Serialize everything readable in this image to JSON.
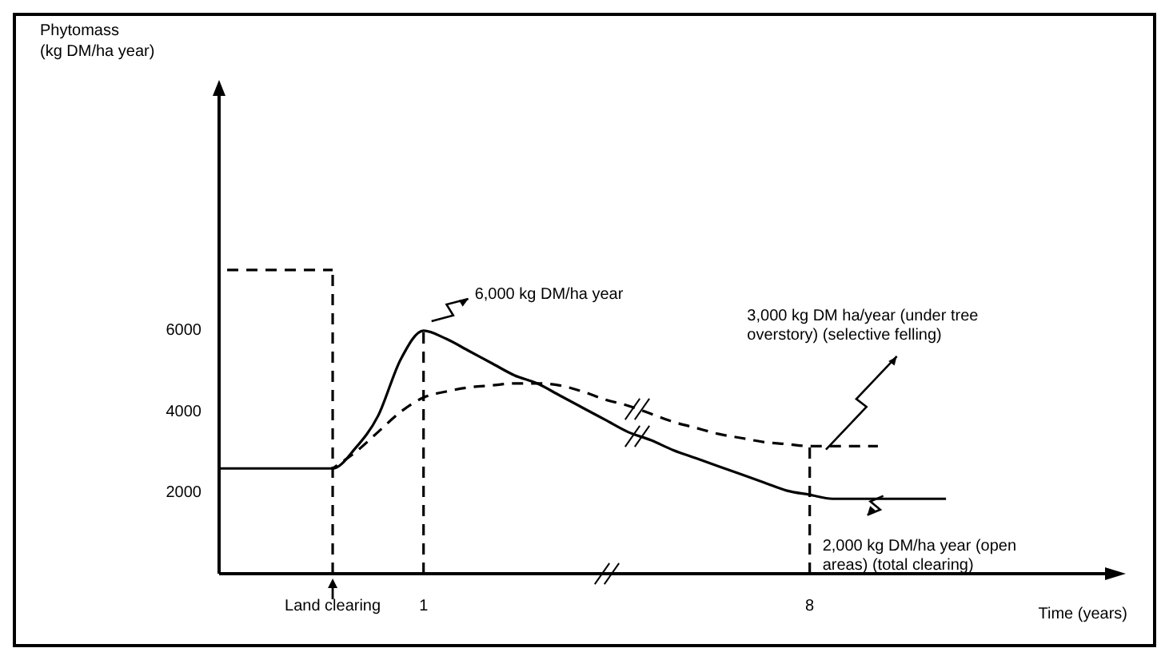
{
  "chart_data": {
    "type": "line",
    "ylabel": "Phytomass (kg DM/ha year)",
    "xlabel": "Time (years)",
    "categories": [
      null,
      null,
      null,
      null,
      null,
      "Land clearing",
      null,
      null,
      null,
      "1",
      null,
      null,
      null,
      null,
      null,
      null,
      null,
      null,
      null,
      null,
      null,
      null,
      null,
      null,
      null,
      null,
      "8",
      null,
      null,
      null,
      null,
      null,
      null,
      null,
      null,
      null,
      null,
      null,
      null,
      null
    ],
    "series": [
      {
        "color": "#000000",
        "line_style": "solid",
        "values": [
          2600,
          2600,
          2600,
          2600,
          2600,
          2600,
          3100,
          3900,
          5300,
          6000,
          5800,
          5500,
          5200,
          4900,
          4700,
          4400,
          4100,
          3800,
          3500,
          3300,
          3050,
          2850,
          2650,
          2450,
          2250,
          2050,
          1950,
          1850,
          1850,
          1850,
          1850,
          1850,
          1850,
          null,
          null,
          null,
          null,
          null,
          null,
          null
        ]
      },
      {
        "color": "#000000",
        "line_style": "dashed",
        "values": [
          null,
          null,
          null,
          null,
          null,
          2600,
          3000,
          3500,
          4000,
          4350,
          4500,
          4600,
          4650,
          4700,
          4700,
          4650,
          4500,
          4300,
          4150,
          3950,
          3750,
          3600,
          3450,
          3350,
          3250,
          3200,
          3150,
          3150,
          3150,
          3150,
          null,
          null,
          null,
          null,
          null,
          null,
          null,
          null,
          null,
          null
        ]
      },
      {
        "color": "#000000",
        "line_style": "dashed",
        "values": [
          7500,
          7500,
          7500,
          7500,
          7500,
          7500,
          null,
          null,
          null,
          null,
          null,
          null,
          null,
          null,
          null,
          null,
          null,
          null,
          null,
          null,
          null,
          null,
          null,
          null,
          null,
          null,
          null,
          null,
          null,
          null,
          null,
          null,
          null,
          null,
          null,
          null,
          null,
          null,
          null,
          null
        ]
      }
    ],
    "ylim": [
      0,
      11800
    ],
    "yticks": [
      2000,
      4000,
      6000
    ],
    "ref_lines": [
      {
        "axis": "x",
        "value": "Land clearing",
        "line_style": "dashed"
      },
      {
        "axis": "x",
        "value": "1",
        "line_style": "dashed"
      },
      {
        "axis": "x",
        "value": "8",
        "line_style": "dashed"
      }
    ],
    "annotations": [
      {
        "text": "6,000 kg DM/ha year",
        "x": "1",
        "y": 6000
      },
      "3,000 kg DM ha/year (under tree overstory) (selective felling)",
      {
        "text": "2,000 kg DM/ha year (open areas) (total clearing)",
        "x": "8",
        "y": 2000
      }
    ],
    "grid": false,
    "legend": false,
    "marker": "none"
  }
}
